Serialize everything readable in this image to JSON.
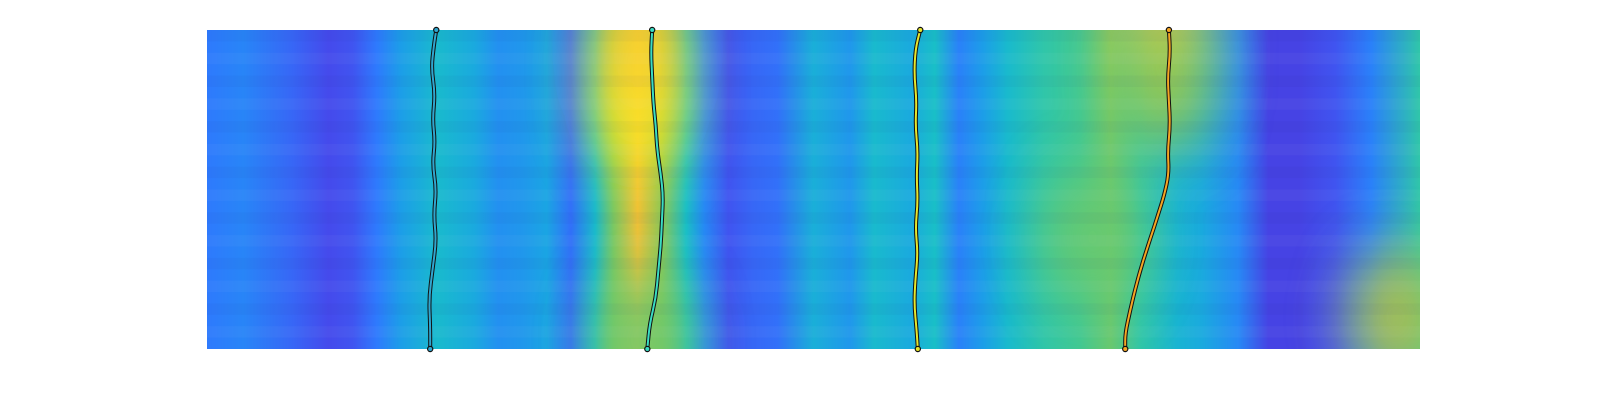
{
  "chart_data": {
    "type": "heatmap",
    "title": "",
    "xlabel": "",
    "ylabel": "",
    "axes_visible": false,
    "grid": false,
    "legend": "none",
    "colormap": [
      "#3e26a8",
      "#4746eb",
      "#2d7bfd",
      "#1aa3e5",
      "#19c0c6",
      "#47cb8b",
      "#9fc646",
      "#ecba3a",
      "#fedd2c",
      "#f9fb0e"
    ],
    "column_profile": [
      [
        0.0,
        0.22
      ],
      [
        0.03,
        0.25
      ],
      [
        0.07,
        0.18
      ],
      [
        0.1,
        0.12
      ],
      [
        0.12,
        0.14
      ],
      [
        0.14,
        0.22
      ],
      [
        0.16,
        0.32
      ],
      [
        0.19,
        0.42
      ],
      [
        0.22,
        0.36
      ],
      [
        0.24,
        0.28
      ],
      [
        0.26,
        0.3
      ],
      [
        0.28,
        0.34
      ],
      [
        0.3,
        0.2
      ],
      [
        0.32,
        0.42
      ],
      [
        0.335,
        0.62
      ],
      [
        0.355,
        0.8
      ],
      [
        0.375,
        0.64
      ],
      [
        0.395,
        0.44
      ],
      [
        0.41,
        0.26
      ],
      [
        0.43,
        0.14
      ],
      [
        0.45,
        0.18
      ],
      [
        0.47,
        0.2
      ],
      [
        0.5,
        0.38
      ],
      [
        0.53,
        0.3
      ],
      [
        0.55,
        0.42
      ],
      [
        0.58,
        0.36
      ],
      [
        0.6,
        0.44
      ],
      [
        0.62,
        0.24
      ],
      [
        0.64,
        0.32
      ],
      [
        0.66,
        0.42
      ],
      [
        0.69,
        0.5
      ],
      [
        0.72,
        0.54
      ],
      [
        0.745,
        0.6
      ],
      [
        0.77,
        0.5
      ],
      [
        0.8,
        0.4
      ],
      [
        0.82,
        0.36
      ],
      [
        0.85,
        0.26
      ],
      [
        0.875,
        0.1
      ],
      [
        0.9,
        0.1
      ],
      [
        0.93,
        0.14
      ],
      [
        0.96,
        0.24
      ],
      [
        1.0,
        0.5
      ]
    ],
    "hotspots": [
      {
        "x": 0.355,
        "y": 0.78,
        "value": 0.95
      },
      {
        "x": 0.355,
        "y": 0.95,
        "value": 0.85
      },
      {
        "x": 0.79,
        "y": 0.97,
        "value": 0.85
      },
      {
        "x": 0.79,
        "y": 0.83,
        "value": 0.65
      },
      {
        "x": 0.73,
        "y": 0.35,
        "value": 0.6
      },
      {
        "x": 0.98,
        "y": 0.1,
        "value": 0.7
      },
      {
        "x": 0.36,
        "y": 0.03,
        "value": 0.6
      }
    ],
    "series": [
      {
        "color": "#2fa6cf",
        "points": [
          [
            0.189,
            1.0
          ],
          [
            0.187,
            0.95
          ],
          [
            0.185,
            0.88
          ],
          [
            0.188,
            0.8
          ],
          [
            0.186,
            0.72
          ],
          [
            0.188,
            0.65
          ],
          [
            0.186,
            0.58
          ],
          [
            0.189,
            0.5
          ],
          [
            0.187,
            0.42
          ],
          [
            0.189,
            0.34
          ],
          [
            0.186,
            0.25
          ],
          [
            0.183,
            0.16
          ],
          [
            0.184,
            0.07
          ],
          [
            0.184,
            0.0
          ]
        ]
      },
      {
        "color": "#39dcc3",
        "points": [
          [
            0.367,
            1.0
          ],
          [
            0.366,
            0.93
          ],
          [
            0.367,
            0.85
          ],
          [
            0.368,
            0.77
          ],
          [
            0.37,
            0.7
          ],
          [
            0.371,
            0.63
          ],
          [
            0.374,
            0.55
          ],
          [
            0.376,
            0.48
          ],
          [
            0.375,
            0.4
          ],
          [
            0.374,
            0.32
          ],
          [
            0.372,
            0.24
          ],
          [
            0.37,
            0.16
          ],
          [
            0.365,
            0.08
          ],
          [
            0.363,
            0.0
          ]
        ]
      },
      {
        "color": "#e6e62c",
        "points": [
          [
            0.588,
            1.0
          ],
          [
            0.584,
            0.94
          ],
          [
            0.583,
            0.86
          ],
          [
            0.585,
            0.78
          ],
          [
            0.584,
            0.7
          ],
          [
            0.586,
            0.62
          ],
          [
            0.585,
            0.54
          ],
          [
            0.586,
            0.46
          ],
          [
            0.584,
            0.38
          ],
          [
            0.586,
            0.3
          ],
          [
            0.584,
            0.22
          ],
          [
            0.583,
            0.14
          ],
          [
            0.585,
            0.06
          ],
          [
            0.586,
            0.0
          ]
        ]
      },
      {
        "color": "#f5a623",
        "points": [
          [
            0.793,
            1.0
          ],
          [
            0.794,
            0.93
          ],
          [
            0.792,
            0.85
          ],
          [
            0.793,
            0.78
          ],
          [
            0.794,
            0.7
          ],
          [
            0.792,
            0.62
          ],
          [
            0.793,
            0.55
          ],
          [
            0.789,
            0.48
          ],
          [
            0.784,
            0.42
          ],
          [
            0.778,
            0.35
          ],
          [
            0.772,
            0.28
          ],
          [
            0.766,
            0.2
          ],
          [
            0.761,
            0.12
          ],
          [
            0.757,
            0.05
          ],
          [
            0.757,
            0.0
          ]
        ]
      }
    ]
  }
}
